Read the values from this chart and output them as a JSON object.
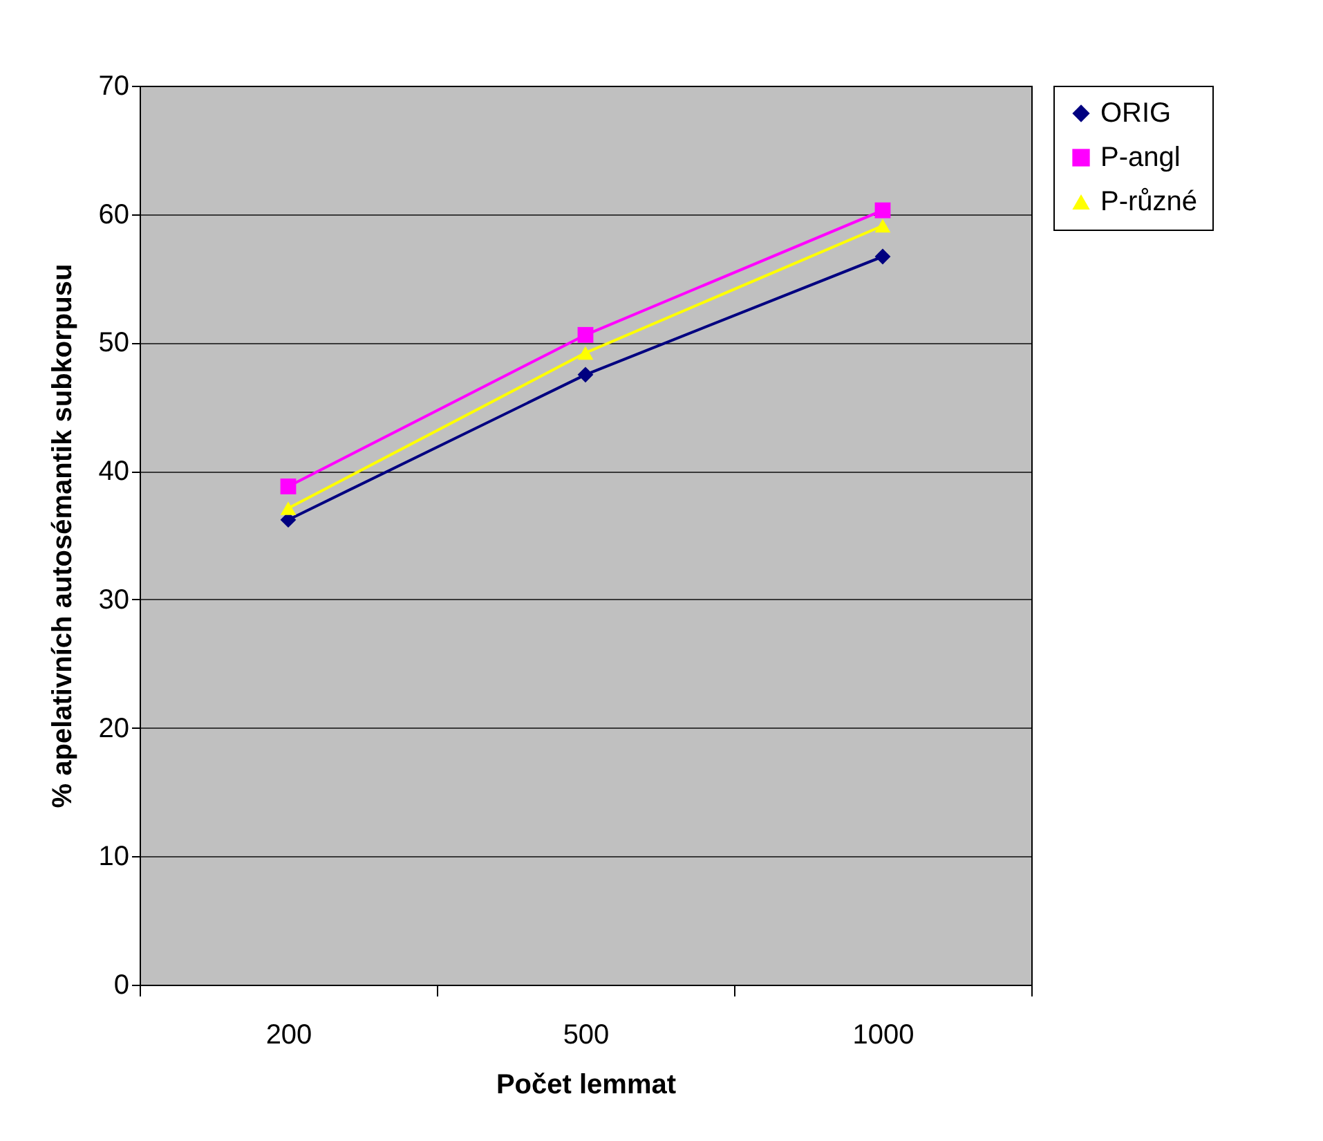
{
  "chart_data": {
    "type": "line",
    "xlabel": "Počet lemmat",
    "ylabel": "% apelativních autosémantik subkorpusu",
    "categories": [
      "200",
      "500",
      "1000"
    ],
    "series": [
      {
        "name": "ORIG",
        "color": "#000080",
        "marker": "diamond",
        "values": [
          36.2,
          47.5,
          56.7
        ]
      },
      {
        "name": "P-angl",
        "color": "#ff00ff",
        "marker": "square",
        "values": [
          38.8,
          50.6,
          60.3
        ]
      },
      {
        "name": "P-různé",
        "color": "#ffff00",
        "marker": "triangle",
        "values": [
          37.1,
          49.2,
          59.1
        ]
      }
    ],
    "ylim": [
      0,
      70
    ],
    "yticks": [
      0,
      10,
      20,
      30,
      40,
      50,
      60,
      70
    ],
    "grid": "y",
    "legend": "right",
    "line_style": "solid"
  }
}
